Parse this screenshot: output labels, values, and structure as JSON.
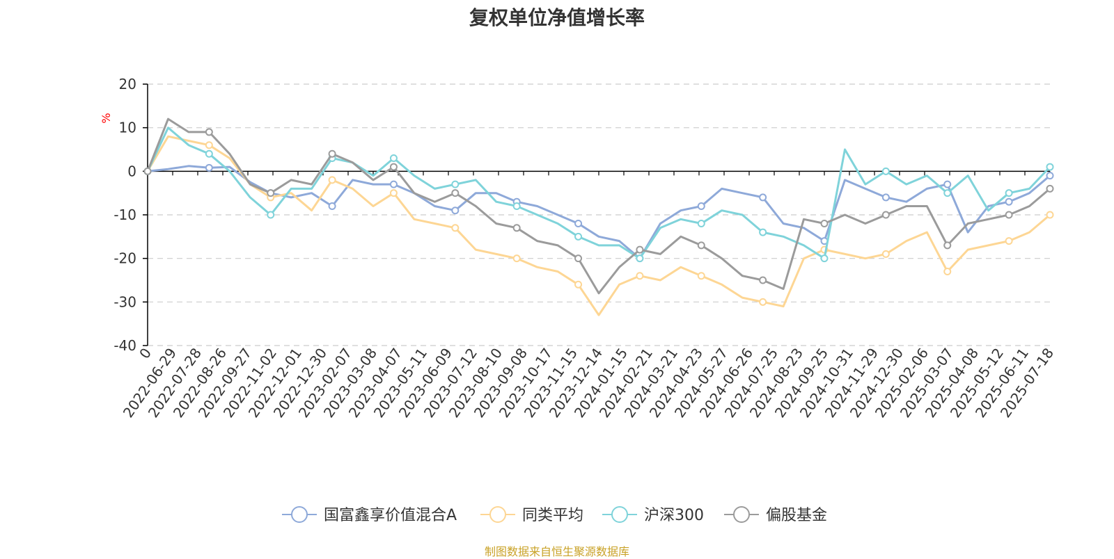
{
  "title": "复权单位净值增长率",
  "source_note": "制图数据来自恒生聚源数据库",
  "colors": {
    "series_a": "#8ea9d9",
    "peer_avg": "#fdd694",
    "hs300": "#7fd3da",
    "equity_fund": "#9b9b9b",
    "unit": "#ff0000",
    "source": "#c9a227",
    "grid": "#cccccc",
    "axis": "#000000"
  },
  "chart_data": {
    "type": "line",
    "title": "复权单位净值增长率",
    "ylabel": "%",
    "ylim": [
      -40,
      20
    ],
    "yticks": [
      20,
      10,
      0,
      -10,
      -20,
      -30,
      -40
    ],
    "grid": "horizontal dashed",
    "legend_position": "bottom-center",
    "x_tick_labels": [
      "0",
      "2022-06-29",
      "2022-07-28",
      "2022-08-26",
      "2022-09-27",
      "2022-11-02",
      "2022-12-01",
      "2022-12-30",
      "2023-02-07",
      "2023-03-08",
      "2023-04-07",
      "2023-05-11",
      "2023-06-09",
      "2023-07-12",
      "2023-08-10",
      "2023-09-08",
      "2023-10-17",
      "2023-11-15",
      "2023-12-14",
      "2024-01-15",
      "2024-02-21",
      "2024-03-21",
      "2024-04-23",
      "2024-05-27",
      "2024-06-26",
      "2024-07-25",
      "2024-08-23",
      "2024-09-25",
      "2024-10-31",
      "2024-11-29",
      "2024-12-30",
      "2025-02-06",
      "2025-03-07",
      "2025-04-08",
      "2025-05-12",
      "2025-06-11",
      "2025-07-18"
    ],
    "series": [
      {
        "name": "国富鑫享价值混合A",
        "color_key": "series_a",
        "values": [
          0,
          0.5,
          1.2,
          0.8,
          1.0,
          -2.5,
          -5,
          -6,
          -5,
          -8,
          -2,
          -3,
          -3,
          -5,
          -8,
          -9,
          -5,
          -5,
          -7,
          -8,
          -10,
          -12,
          -15,
          -16,
          -20,
          -12,
          -9,
          -8,
          -4,
          -5,
          -6,
          -12,
          -13,
          -16,
          -2,
          -4,
          -6,
          -7,
          -4,
          -3,
          -14,
          -8,
          -7,
          -5,
          -1
        ]
      },
      {
        "name": "同类平均",
        "color_key": "peer_avg",
        "values": [
          0,
          8,
          7,
          6,
          3,
          -3,
          -6,
          -5,
          -9,
          -2,
          -4,
          -8,
          -5,
          -11,
          -12,
          -13,
          -18,
          -19,
          -20,
          -22,
          -23,
          -26,
          -33,
          -26,
          -24,
          -25,
          -22,
          -24,
          -26,
          -29,
          -30,
          -31,
          -20,
          -18,
          -19,
          -20,
          -19,
          -16,
          -14,
          -23,
          -18,
          -17,
          -16,
          -14,
          -10
        ]
      },
      {
        "name": "沪深300",
        "color_key": "hs300",
        "values": [
          0,
          10,
          6,
          4,
          0,
          -6,
          -10,
          -4,
          -4,
          3,
          2,
          -1,
          3,
          -1,
          -4,
          -3,
          -2,
          -7,
          -8,
          -10,
          -12,
          -15,
          -17,
          -17,
          -20,
          -13,
          -11,
          -12,
          -9,
          -10,
          -14,
          -15,
          -17,
          -20,
          5,
          -3,
          0,
          -3,
          -1,
          -5,
          -1,
          -9,
          -5,
          -4,
          1
        ]
      },
      {
        "name": "偏股基金",
        "color_key": "equity_fund",
        "values": [
          0,
          12,
          9,
          9,
          4,
          -3,
          -5,
          -2,
          -3,
          4,
          2,
          -2,
          1,
          -5,
          -7,
          -5,
          -8,
          -12,
          -13,
          -16,
          -17,
          -20,
          -28,
          -22,
          -18,
          -19,
          -15,
          -17,
          -20,
          -24,
          -25,
          -27,
          -11,
          -12,
          -10,
          -12,
          -10,
          -8,
          -8,
          -17,
          -12,
          -11,
          -10,
          -8,
          -4
        ]
      }
    ]
  }
}
